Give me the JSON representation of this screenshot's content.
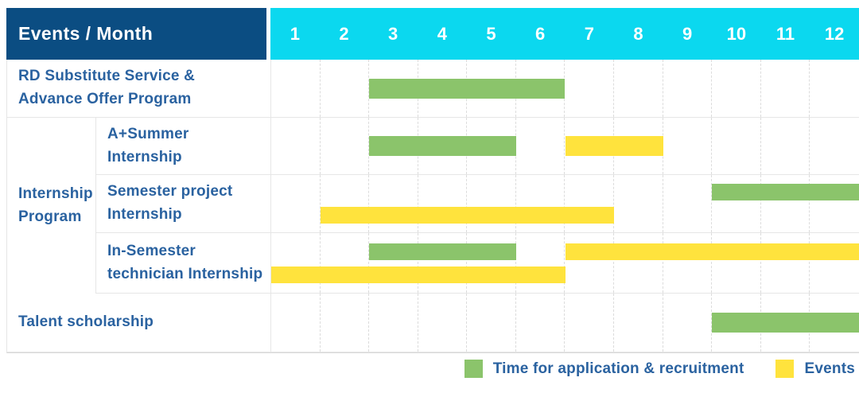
{
  "colors": {
    "header_navy": "#0b4d82",
    "header_cyan": "#0bd8ef",
    "label_text": "#2a62a0",
    "application_green": "#8bc46b",
    "event_yellow": "#ffe33d",
    "grid_line": "#dcdcdc",
    "row_border": "#e6e6e6"
  },
  "chart_data": {
    "type": "bar",
    "subtype": "gantt-schedule",
    "title": "Events / Month",
    "x_axis_ticks": [
      "1",
      "2",
      "3",
      "4",
      "5",
      "6",
      "7",
      "8",
      "9",
      "10",
      "11",
      "12"
    ],
    "x_range": [
      1,
      12
    ],
    "grid": true,
    "legend_position": "bottom-right",
    "legend": [
      {
        "series": "application",
        "label": "Time for application & recruitment",
        "color": "#8bc46b"
      },
      {
        "series": "event",
        "label": "Events",
        "color": "#ffe33d"
      }
    ],
    "group_label_lines": [
      "Internship",
      "Program"
    ],
    "rows": [
      {
        "id": "rd-substitute-service",
        "label_lines": [
          "RD Substitute Service &",
          "Advance Offer Program"
        ],
        "group": null,
        "tracks": [
          [
            {
              "series": "application",
              "start": 3,
              "end": 6
            }
          ]
        ]
      },
      {
        "id": "a-plus-summer-internship",
        "label_lines": [
          "A+Summer",
          "Internship"
        ],
        "group": "Internship Program",
        "tracks": [
          [
            {
              "series": "application",
              "start": 3,
              "end": 5
            },
            {
              "series": "event",
              "start": 7,
              "end": 8
            }
          ]
        ]
      },
      {
        "id": "semester-project-internship",
        "label_lines": [
          "Semester project",
          "Internship"
        ],
        "group": "Internship Program",
        "tracks": [
          [
            {
              "series": "application",
              "start": 10,
              "end": 12
            }
          ],
          [
            {
              "series": "event",
              "start": 2,
              "end": 7
            }
          ]
        ]
      },
      {
        "id": "in-semester-technician-internship",
        "label_lines": [
          "In-Semester",
          "technician Internship"
        ],
        "group": "Internship Program",
        "tracks": [
          [
            {
              "series": "application",
              "start": 3,
              "end": 5
            },
            {
              "series": "event",
              "start": 7,
              "end": 12
            }
          ],
          [
            {
              "series": "event",
              "start": 1,
              "end": 6
            }
          ]
        ]
      },
      {
        "id": "talent-scholarship",
        "label_lines": [
          "Talent scholarship"
        ],
        "group": null,
        "tracks": [
          [
            {
              "series": "application",
              "start": 10,
              "end": 12
            }
          ]
        ]
      }
    ]
  }
}
